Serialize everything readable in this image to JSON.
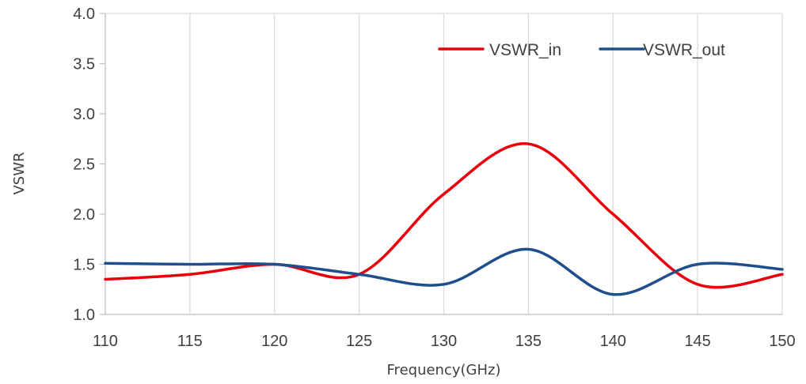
{
  "chart_data": {
    "type": "line",
    "title": "",
    "xlabel": "Frequency(GHz)",
    "ylabel": "VSWR",
    "xlim": [
      110,
      150
    ],
    "ylim": [
      1.0,
      4.0
    ],
    "xticks": [
      "110",
      "115",
      "120",
      "125",
      "130",
      "135",
      "140",
      "145",
      "150"
    ],
    "yticks": [
      "1.0",
      "1.5",
      "2.0",
      "2.5",
      "3.0",
      "3.5",
      "4.0"
    ],
    "grid": "vertical",
    "legend_position": "top-right",
    "series": [
      {
        "name": "VSWR_in",
        "color": "#e8000b",
        "x": [
          110,
          115,
          120,
          125,
          130,
          135,
          140,
          145,
          150
        ],
        "y": [
          1.35,
          1.4,
          1.5,
          1.4,
          2.2,
          2.7,
          2.0,
          1.3,
          1.4
        ]
      },
      {
        "name": "VSWR_out",
        "color": "#1f4e8c",
        "x": [
          110,
          115,
          120,
          125,
          130,
          135,
          140,
          145,
          150
        ],
        "y": [
          1.51,
          1.5,
          1.5,
          1.4,
          1.3,
          1.65,
          1.2,
          1.5,
          1.45
        ]
      }
    ]
  }
}
